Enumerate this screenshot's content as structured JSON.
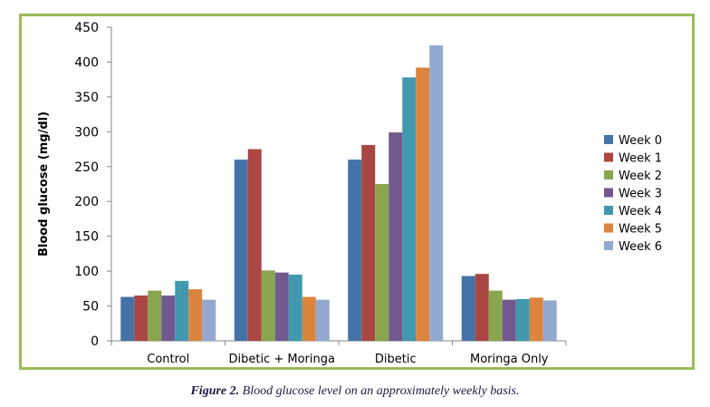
{
  "chart_data": {
    "type": "bar",
    "ylabel": "Blood glucose (mg/dl)",
    "xlabel": "",
    "ylim": [
      0,
      450
    ],
    "yticks": [
      0,
      50,
      100,
      150,
      200,
      250,
      300,
      350,
      400,
      450
    ],
    "categories": [
      "Control",
      "Dibetic + Moringa",
      "Dibetic",
      "Moringa Only"
    ],
    "legend_position": "right",
    "grid": false,
    "series": [
      {
        "name": "Week 0",
        "color": "#4572a7",
        "values": [
          63,
          260,
          260,
          93
        ]
      },
      {
        "name": "Week 1",
        "color": "#aa4643",
        "values": [
          65,
          275,
          281,
          96
        ]
      },
      {
        "name": "Week 2",
        "color": "#89a54e",
        "values": [
          72,
          101,
          225,
          72
        ]
      },
      {
        "name": "Week 3",
        "color": "#71588f",
        "values": [
          65,
          98,
          299,
          59
        ]
      },
      {
        "name": "Week 4",
        "color": "#4198af",
        "values": [
          86,
          95,
          378,
          60
        ]
      },
      {
        "name": "Week 5",
        "color": "#db843d",
        "values": [
          74,
          63,
          392,
          62
        ]
      },
      {
        "name": "Week 6",
        "color": "#93a9cf",
        "values": [
          59,
          59,
          424,
          58
        ]
      }
    ]
  },
  "caption": {
    "label": "Figure 2.",
    "text": " Blood glucose level on an approximately weekly basis."
  }
}
